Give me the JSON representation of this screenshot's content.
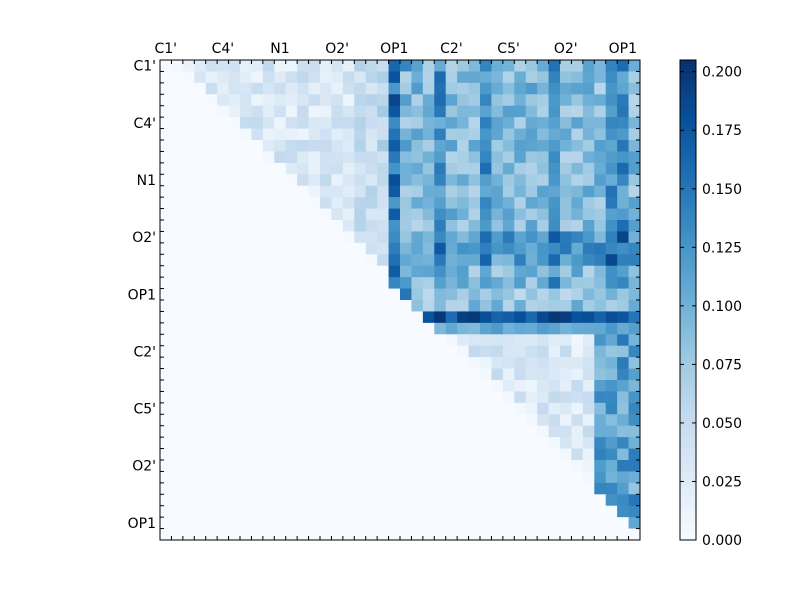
{
  "chart_data": {
    "type": "heatmap",
    "title": "",
    "colormap": "Blues",
    "grid": false,
    "matrix_size": 42,
    "x_tick_labels": [
      "C1'",
      "C4'",
      "N1",
      "O2'",
      "OP1",
      "C2'",
      "C5'",
      "O2'",
      "OP1"
    ],
    "y_tick_labels": [
      "C1'",
      "C4'",
      "N1",
      "O2'",
      "OP1",
      "C2'",
      "C5'",
      "O2'",
      "OP1"
    ],
    "x_tick_positions": [
      0,
      5,
      10,
      15,
      20,
      25,
      30,
      35,
      40
    ],
    "y_tick_positions": [
      0,
      5,
      10,
      15,
      20,
      25,
      30,
      35,
      40
    ],
    "colorbar": {
      "min": 0.0,
      "max": 0.205,
      "ticks": [
        "0.000",
        "0.025",
        "0.050",
        "0.075",
        "0.100",
        "0.125",
        "0.150",
        "0.175",
        "0.200"
      ],
      "tick_values": [
        0.0,
        0.025,
        0.05,
        0.075,
        0.1,
        0.125,
        0.15,
        0.175,
        0.2
      ]
    },
    "value_description": "Upper-triangular matrix: small values (~0.01-0.05) among first 20 atoms, strong columns at atom 20-21 (~0.15-0.19), block atoms 22-41 vs 0-21 ~0.06-0.18, row 22 ~0.17-0.2, lower-right block small except columns 38-41 ~0.1-0.15; lower triangle 0."
  }
}
